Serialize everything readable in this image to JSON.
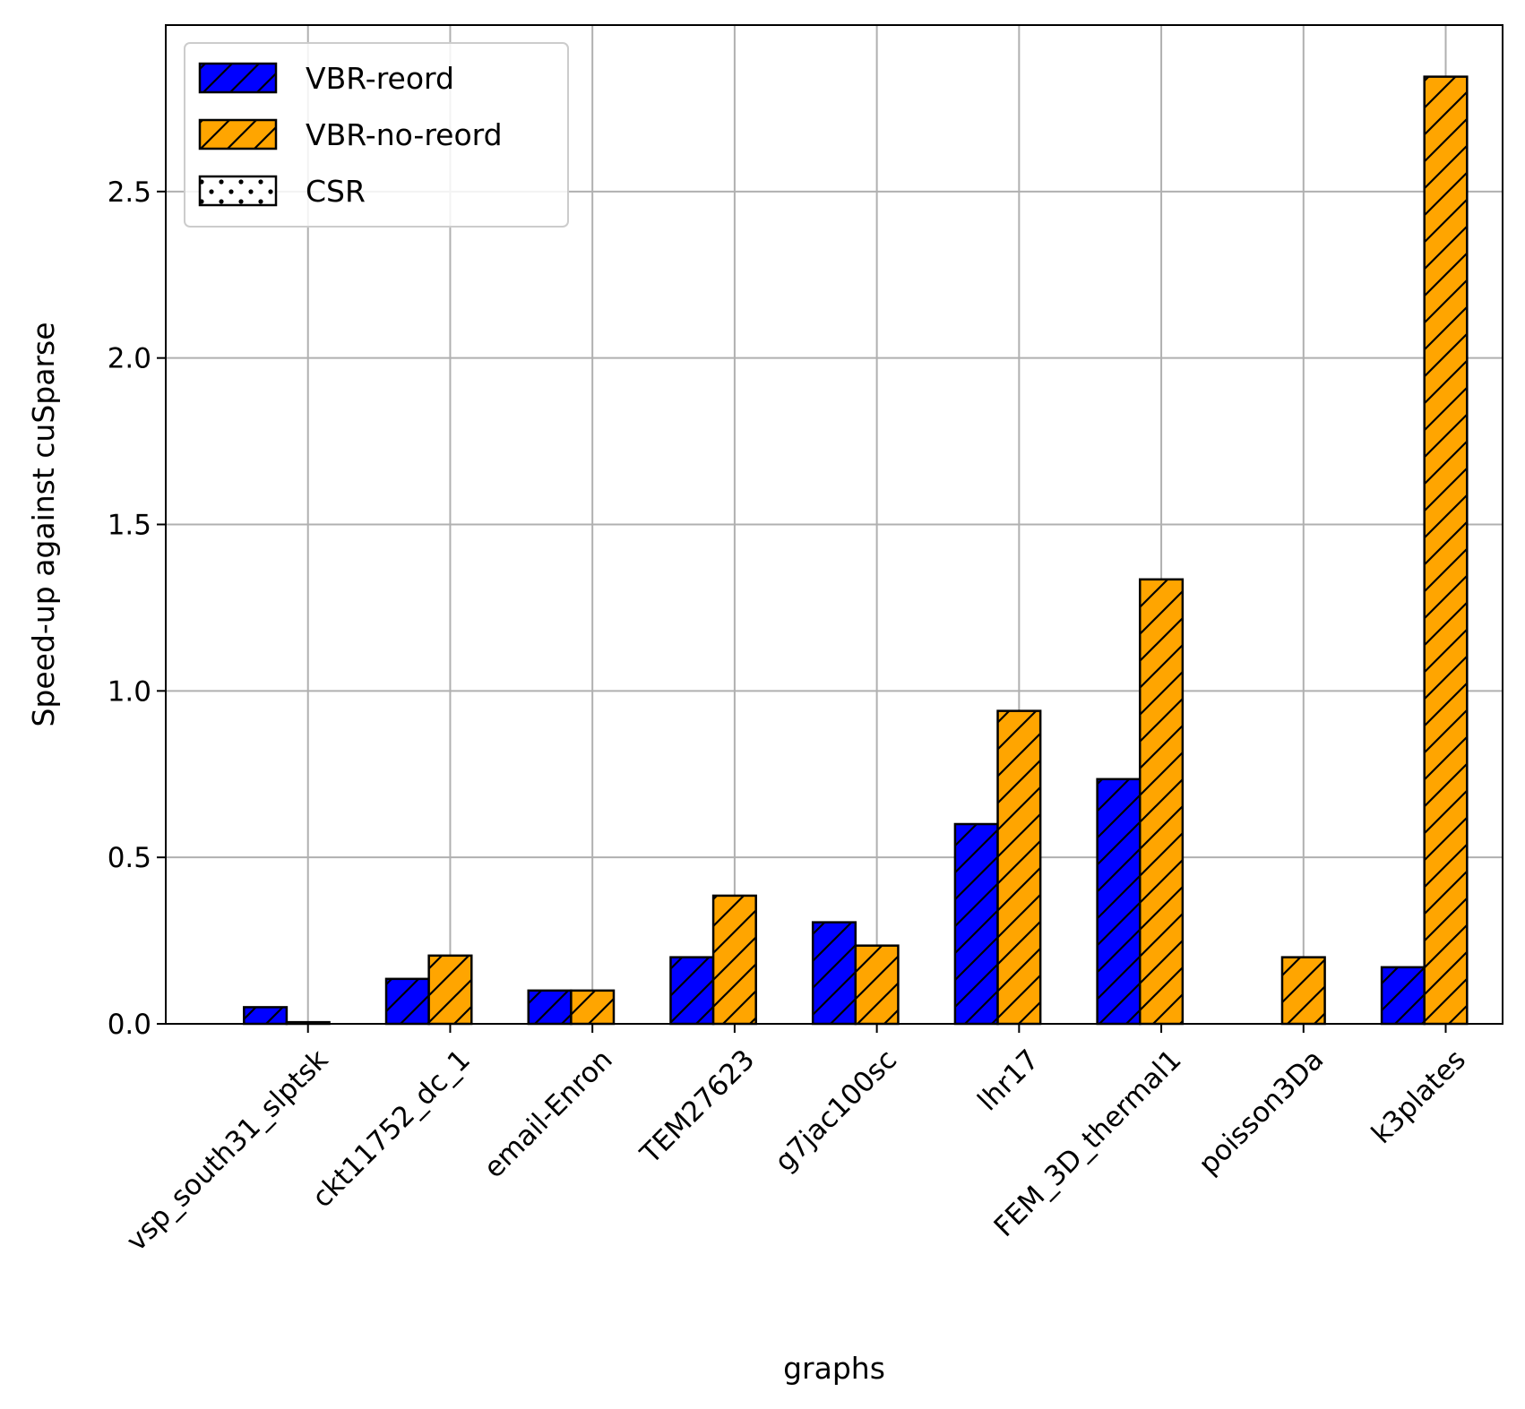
{
  "chart_data": {
    "type": "bar",
    "xlabel": "graphs",
    "ylabel": "Speed-up against cuSparse",
    "ylim": [
      0,
      3.0
    ],
    "yticks": [
      "0.0",
      "0.5",
      "1.0",
      "1.5",
      "2.0",
      "2.5"
    ],
    "grid": true,
    "legend_position": "top-left",
    "categories": [
      "vsp_south31_slptsk",
      "ckt11752_dc_1",
      "email-Enron",
      "TEM27623",
      "g7jac100sc",
      "lhr17",
      "FEM_3D_thermal1",
      "poisson3Da",
      "k3plates"
    ],
    "series": [
      {
        "name": "VBR-reord",
        "color": "#0000ff",
        "hatch": "diagonal",
        "values": [
          0.05,
          0.135,
          0.1,
          0.2,
          0.305,
          0.6,
          0.735,
          0.0,
          0.17
        ]
      },
      {
        "name": "VBR-no-reord",
        "color": "#ffa500",
        "hatch": "diagonal",
        "values": [
          0.005,
          0.205,
          0.1,
          0.385,
          0.235,
          0.94,
          1.335,
          0.2,
          2.845
        ]
      },
      {
        "name": "CSR",
        "color": "#ffffff",
        "hatch": "dots",
        "values": [
          0.0,
          0.0,
          0.0,
          0.0,
          0.0,
          0.0,
          0.0,
          0.0,
          0.0
        ]
      }
    ]
  }
}
